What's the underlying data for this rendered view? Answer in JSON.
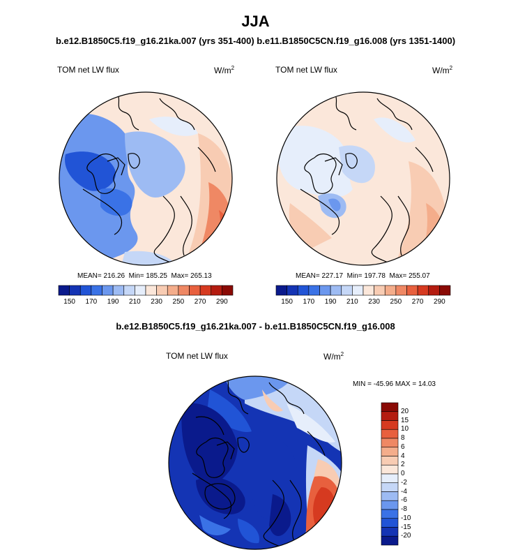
{
  "header": {
    "title": "JJA",
    "subtitle": "b.e12.B1850C5.f19_g16.21ka.007 (yrs 351-400) b.e11.B1850C5CN.f19_g16.008 (yrs 1351-1400)",
    "diff_title": "b.e12.B1850C5.f19_g16.21ka.007 - b.e11.B1850C5CN.f19_g16.008"
  },
  "chart_data": [
    {
      "type": "heatmap",
      "projection": "north-polar-stereographic",
      "variable_label": "TOM net LW flux",
      "unit_base": "W/m",
      "unit_exp": "2",
      "stats": {
        "mean": "216.26",
        "min": "185.25",
        "max": "265.13"
      },
      "colorbar": {
        "orientation": "horizontal",
        "tick_labels": [
          "150",
          "170",
          "190",
          "210",
          "230",
          "250",
          "270",
          "290"
        ],
        "colors": [
          "#0a1a8c",
          "#1434b4",
          "#2154d6",
          "#3a72e6",
          "#6b97ee",
          "#9dbbf3",
          "#c5d7f7",
          "#e6eefb",
          "#fbe7da",
          "#f8ccb3",
          "#f4ad8b",
          "#ef8864",
          "#e8603e",
          "#d63a20",
          "#b41c10",
          "#8a0a05"
        ]
      }
    },
    {
      "type": "heatmap",
      "projection": "north-polar-stereographic",
      "variable_label": "TOM net LW flux",
      "unit_base": "W/m",
      "unit_exp": "2",
      "stats": {
        "mean": "227.17",
        "min": "197.78",
        "max": "255.07"
      },
      "colorbar": {
        "orientation": "horizontal",
        "tick_labels": [
          "150",
          "170",
          "190",
          "210",
          "230",
          "250",
          "270",
          "290"
        ],
        "colors": [
          "#0a1a8c",
          "#1434b4",
          "#2154d6",
          "#3a72e6",
          "#6b97ee",
          "#9dbbf3",
          "#c5d7f7",
          "#e6eefb",
          "#fbe7da",
          "#f8ccb3",
          "#f4ad8b",
          "#ef8864",
          "#e8603e",
          "#d63a20",
          "#b41c10",
          "#8a0a05"
        ]
      }
    },
    {
      "type": "heatmap",
      "projection": "north-polar-stereographic",
      "variable_label": "TOM net LW flux",
      "unit_base": "W/m",
      "unit_exp": "2",
      "stats": {
        "min": "-45.96",
        "max": "14.03"
      },
      "colorbar": {
        "orientation": "vertical",
        "tick_labels": [
          "20",
          "15",
          "10",
          "8",
          "6",
          "4",
          "2",
          "0",
          "-2",
          "-4",
          "-6",
          "-8",
          "-10",
          "-15",
          "-20"
        ],
        "colors": [
          "#8a0a05",
          "#b41c10",
          "#d63a20",
          "#e8603e",
          "#ef8864",
          "#f4ad8b",
          "#f8ccb3",
          "#fbe7da",
          "#e6eefb",
          "#c5d7f7",
          "#9dbbf3",
          "#6b97ee",
          "#3a72e6",
          "#2154d6",
          "#1434b4",
          "#0a1a8c"
        ]
      }
    }
  ]
}
